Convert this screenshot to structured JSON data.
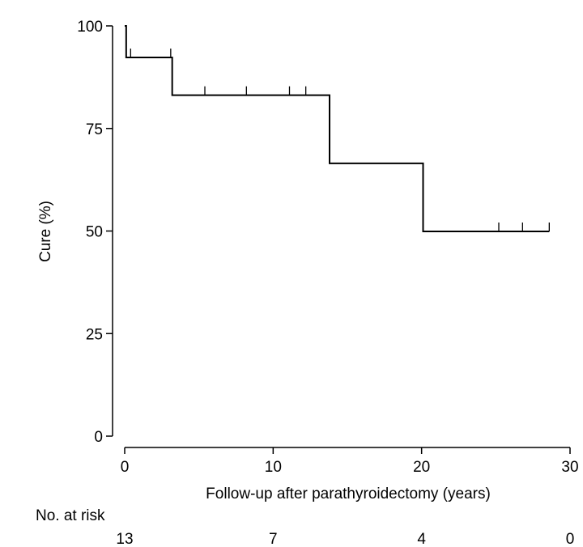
{
  "chart_data": {
    "type": "line",
    "step": true,
    "ylabel": "Cure (%)",
    "xlabel": "Follow-up after parathyroidectomy (years)",
    "xlim": [
      0,
      30
    ],
    "ylim": [
      0,
      100
    ],
    "x_ticks": [
      {
        "value": 0,
        "label": "0"
      },
      {
        "value": 10,
        "label": "10"
      },
      {
        "value": 20,
        "label": "20"
      },
      {
        "value": 30,
        "label": "30"
      }
    ],
    "y_ticks": [
      {
        "value": 0,
        "label": "0"
      },
      {
        "value": 25,
        "label": "25"
      },
      {
        "value": 50,
        "label": "50"
      },
      {
        "value": 75,
        "label": "75"
      },
      {
        "value": 100,
        "label": "100"
      }
    ],
    "series": [
      {
        "x": [
          0,
          0.1,
          3.2,
          13.8,
          20.1,
          28.6
        ],
        "y": [
          100,
          92.3,
          83.1,
          66.5,
          49.9,
          49.9
        ]
      }
    ],
    "censor_marks": [
      {
        "x": 0.4,
        "y": 92.3
      },
      {
        "x": 3.1,
        "y": 92.3
      },
      {
        "x": 5.4,
        "y": 83.1
      },
      {
        "x": 8.2,
        "y": 83.1
      },
      {
        "x": 11.1,
        "y": 83.1
      },
      {
        "x": 12.2,
        "y": 83.1
      },
      {
        "x": 25.2,
        "y": 49.9
      },
      {
        "x": 26.8,
        "y": 49.9
      },
      {
        "x": 28.6,
        "y": 49.9
      }
    ],
    "risk_table": {
      "label": "No. at risk",
      "entries": [
        {
          "x": 0,
          "count": "13"
        },
        {
          "x": 10,
          "count": "7"
        },
        {
          "x": 20,
          "count": "4"
        },
        {
          "x": 30,
          "count": "0"
        }
      ]
    }
  }
}
